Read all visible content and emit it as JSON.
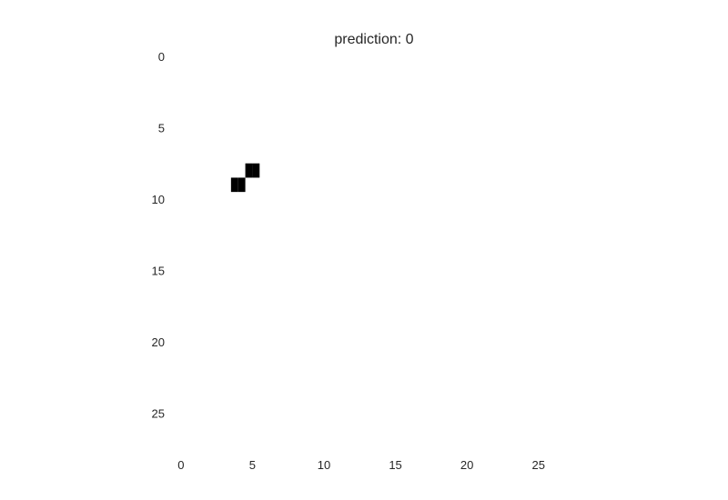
{
  "chart_data": {
    "type": "heatmap",
    "title": "prediction: 0",
    "xlabel": "",
    "ylabel": "",
    "grid": false,
    "rows": 28,
    "cols": 28,
    "colormap": "binary",
    "x_ticks": [
      "0",
      "5",
      "10",
      "15",
      "20",
      "25"
    ],
    "y_ticks": [
      "0",
      "5",
      "10",
      "15",
      "20",
      "25"
    ],
    "xlim": [
      -0.5,
      27.5
    ],
    "ylim": [
      27.5,
      -0.5
    ],
    "background_value": 0,
    "nonzero_pixels": [
      {
        "row": 8,
        "col": 4.75,
        "value": 1
      },
      {
        "row": 8,
        "col": 5.25,
        "value": 1
      },
      {
        "row": 9,
        "col": 3.75,
        "value": 1
      },
      {
        "row": 9,
        "col": 4.25,
        "value": 1
      }
    ],
    "colors": {
      "on": "#000000",
      "off": "#ffffff"
    }
  }
}
